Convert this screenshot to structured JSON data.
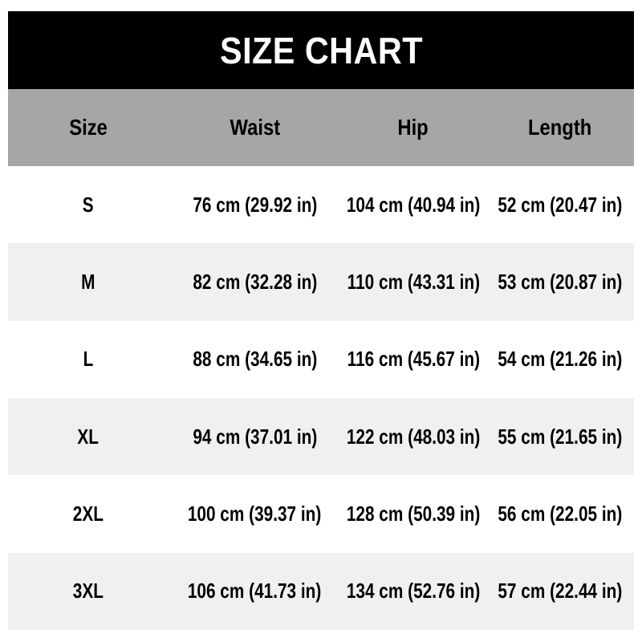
{
  "title": "SIZE CHART",
  "colors": {
    "page_bg": "#ffffff",
    "banner_bg": "#000000",
    "banner_text": "#ffffff",
    "header_bg": "#a6a6a6",
    "row_bg": "#ffffff",
    "row_alt_bg": "#f0f0f0",
    "text": "#000000"
  },
  "chart_data": {
    "type": "table",
    "title": "SIZE CHART",
    "columns": [
      "Size",
      "Waist",
      "Hip",
      "Length"
    ],
    "rows": [
      [
        "S",
        "76 cm (29.92 in)",
        "104 cm (40.94 in)",
        "52 cm (20.47 in)"
      ],
      [
        "M",
        "82 cm (32.28 in)",
        "110 cm (43.31 in)",
        "53 cm (20.87 in)"
      ],
      [
        "L",
        "88 cm (34.65 in)",
        "116 cm (45.67 in)",
        "54 cm (21.26 in)"
      ],
      [
        "XL",
        "94 cm (37.01 in)",
        "122 cm (48.03 in)",
        "55 cm (21.65 in)"
      ],
      [
        "2XL",
        "100 cm (39.37 in)",
        "128 cm (50.39 in)",
        "56 cm (22.05 in)"
      ],
      [
        "3XL",
        "106 cm (41.73 in)",
        "134 cm (52.76 in)",
        "57 cm (22.44 in)"
      ]
    ],
    "layout": {
      "legend": "none",
      "grid": "off",
      "row_striping": "alternating white / light-gray"
    }
  }
}
